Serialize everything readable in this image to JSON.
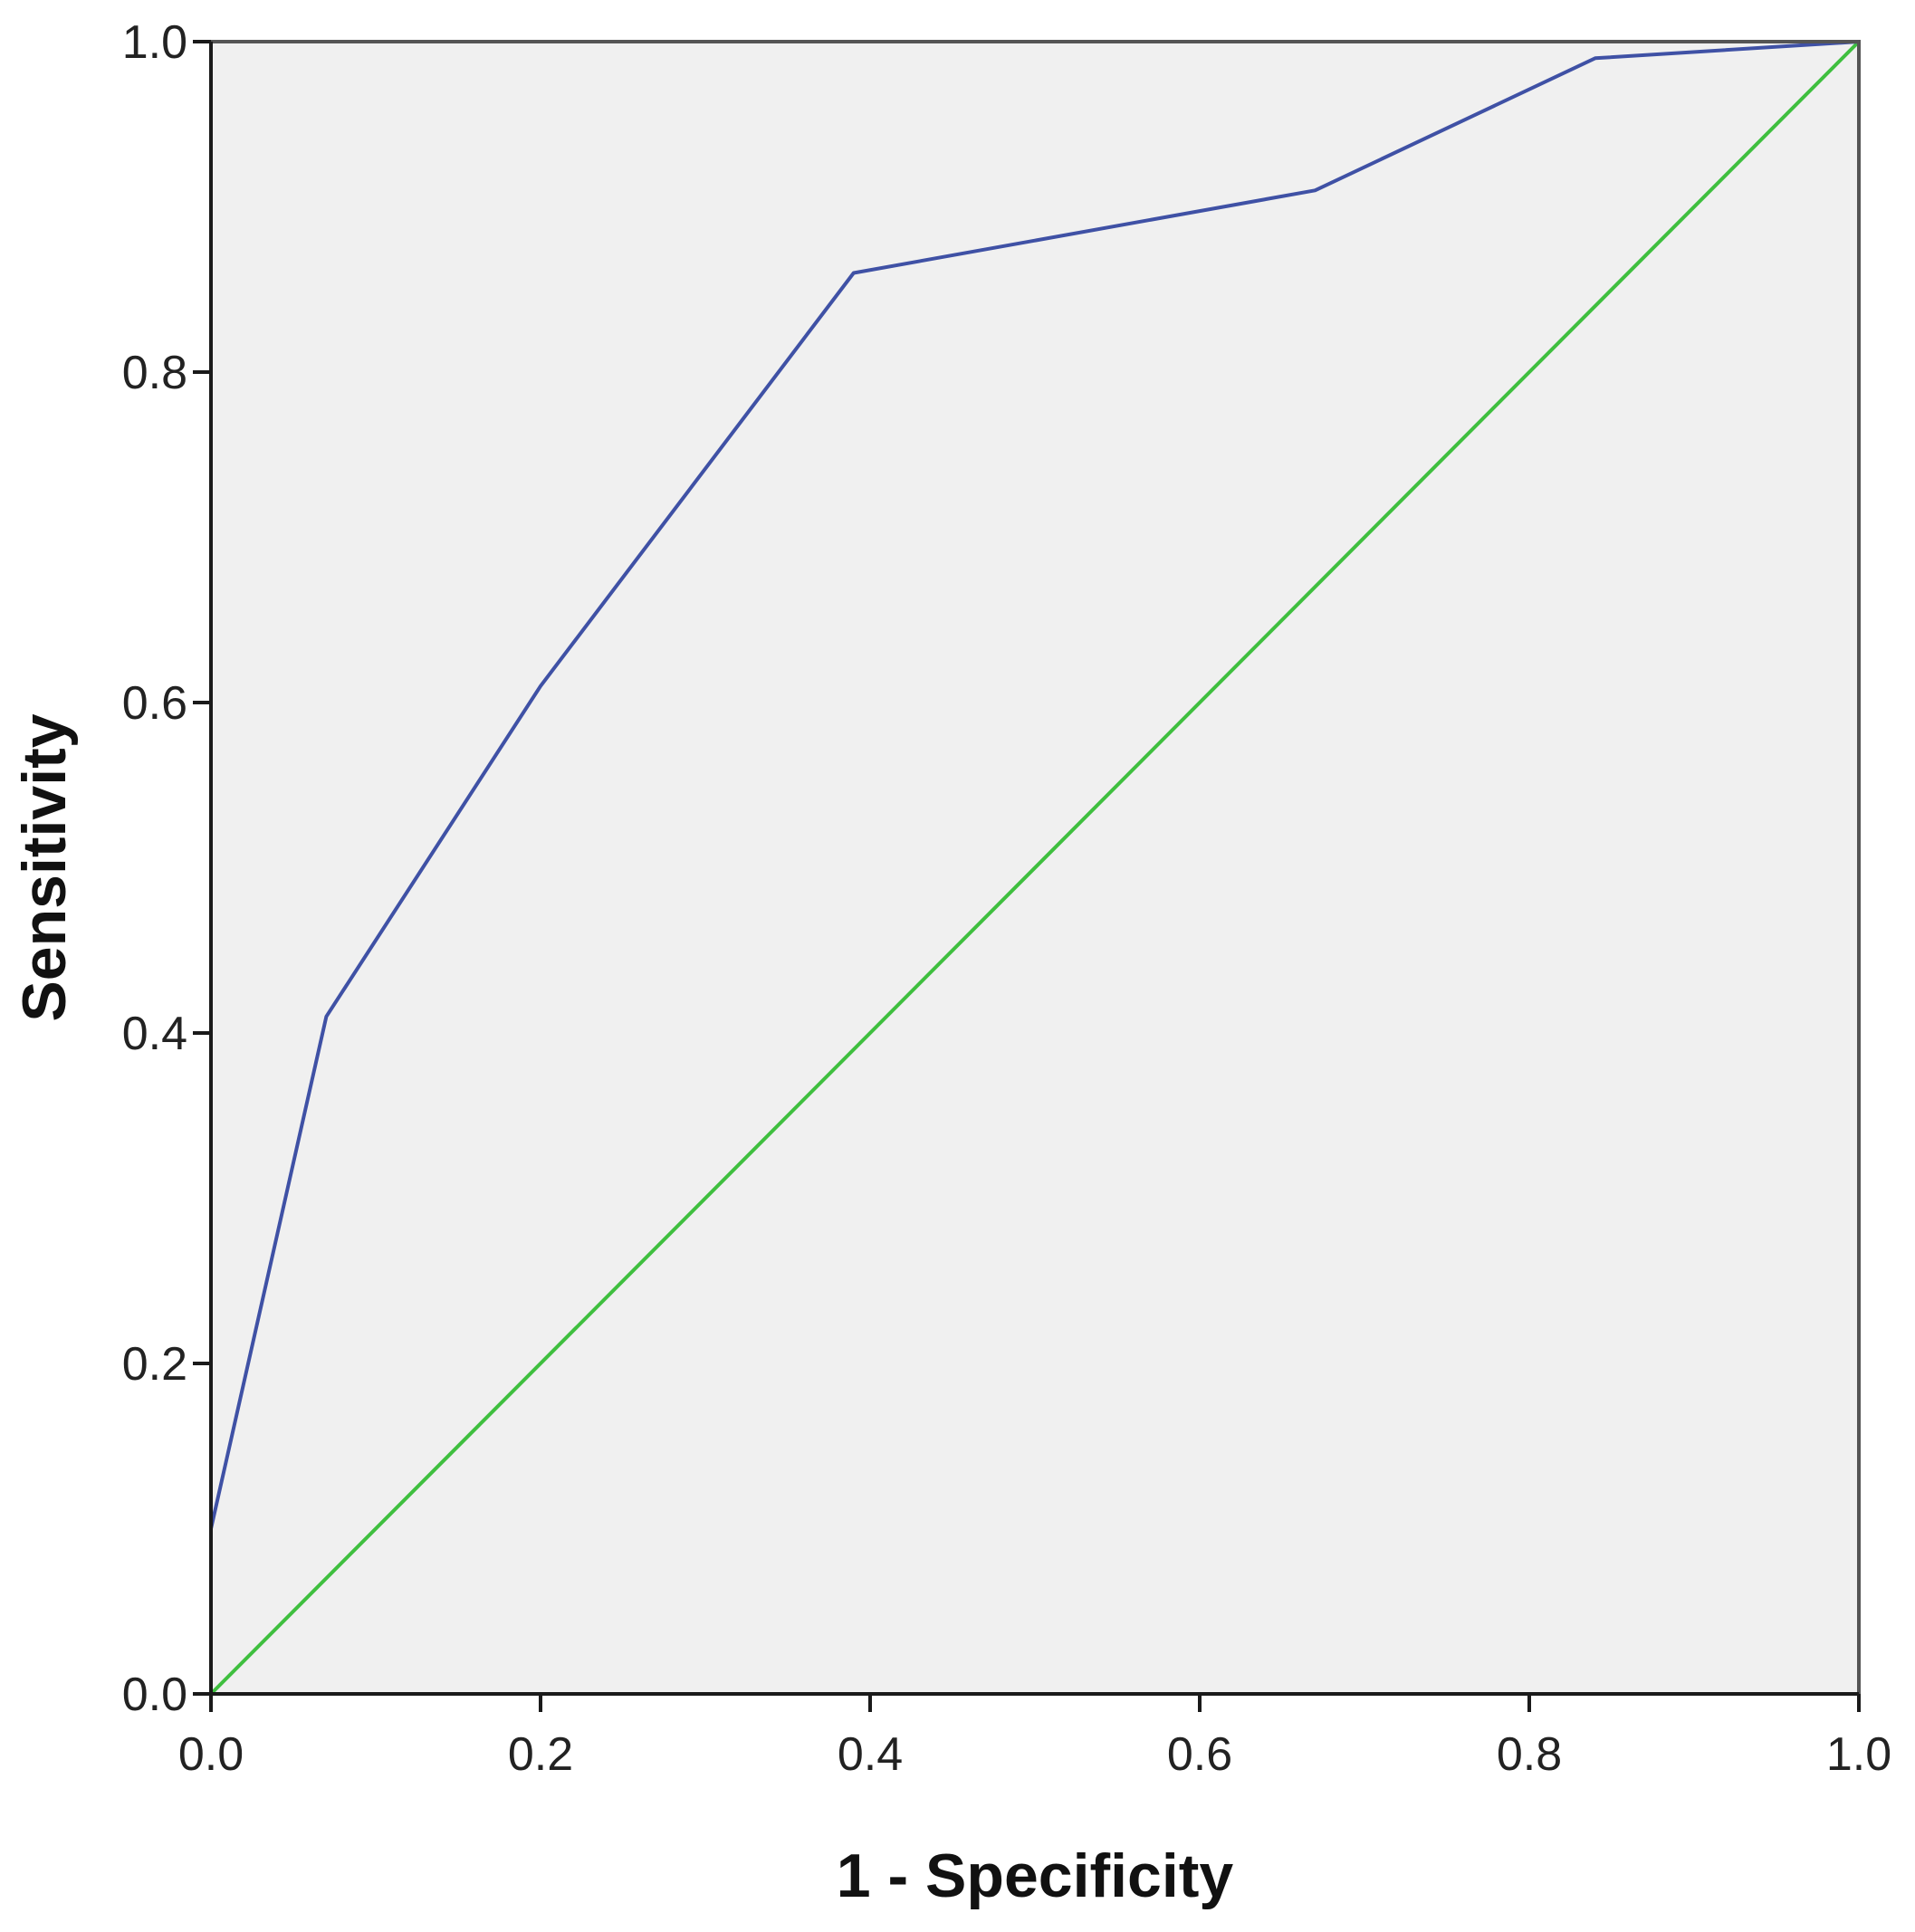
{
  "chart_data": {
    "type": "line",
    "title": "",
    "xlabel": "1 - Specificity",
    "ylabel": "Sensitivity",
    "xlim": [
      0.0,
      1.0
    ],
    "ylim": [
      0.0,
      1.0
    ],
    "x_ticks": [
      "0.0",
      "0.2",
      "0.4",
      "0.6",
      "0.8",
      "1.0"
    ],
    "y_ticks": [
      "0.0",
      "0.2",
      "0.4",
      "0.6",
      "0.8",
      "1.0"
    ],
    "grid": false,
    "legend": "none",
    "plot_background": "#f0f0f0",
    "series": [
      {
        "color": "#3f51a5",
        "points": [
          [
            0.0,
            0.0
          ],
          [
            0.0,
            0.1
          ],
          [
            0.07,
            0.41
          ],
          [
            0.2,
            0.61
          ],
          [
            0.39,
            0.86
          ],
          [
            0.67,
            0.91
          ],
          [
            0.84,
            0.99
          ],
          [
            1.0,
            1.0
          ]
        ]
      },
      {
        "color": "#3fbf3f",
        "points": [
          [
            0.0,
            0.0
          ],
          [
            1.0,
            1.0
          ]
        ]
      }
    ]
  }
}
